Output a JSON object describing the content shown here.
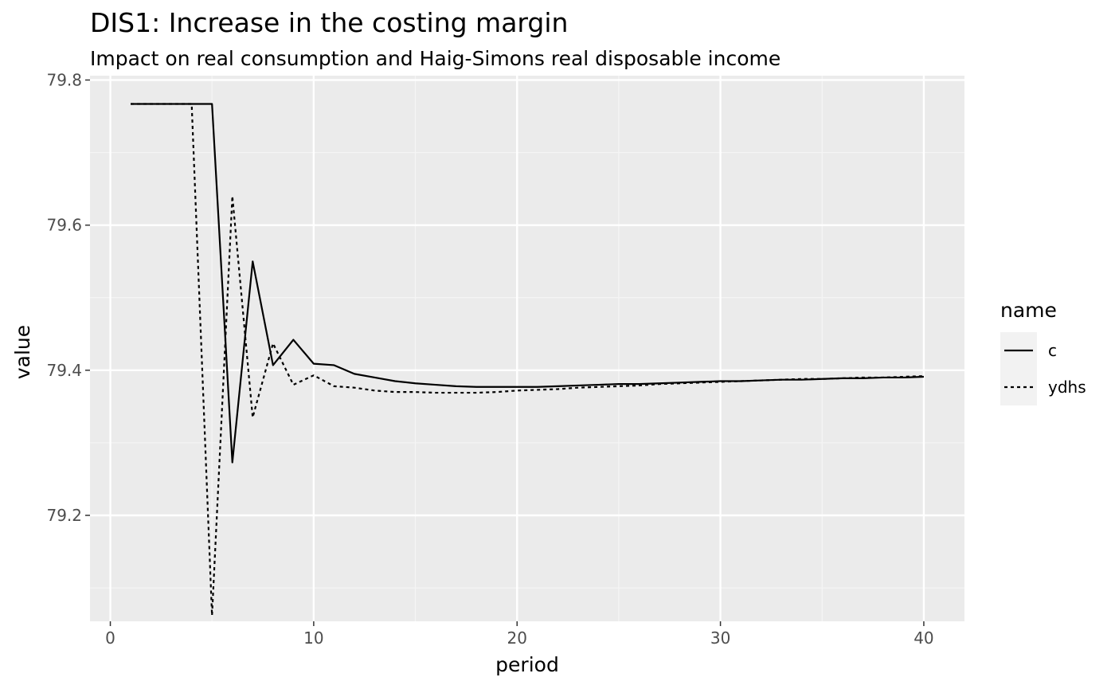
{
  "chart_data": {
    "type": "line",
    "title": "DIS1: Increase in the costing margin",
    "subtitle": "Impact on real consumption and Haig-Simons real disposable income",
    "xlabel": "period",
    "ylabel": "value",
    "xlim": [
      -1,
      42
    ],
    "ylim": [
      79.054,
      79.806
    ],
    "xticks": [
      0,
      10,
      20,
      30,
      40
    ],
    "xtick_labels": [
      "0",
      "10",
      "20",
      "30",
      "40"
    ],
    "yticks": [
      79.2,
      79.4,
      79.6,
      79.8
    ],
    "ytick_labels": [
      "79.2",
      "79.4",
      "79.6",
      "79.8"
    ],
    "grid": true,
    "legend_title": "name",
    "legend_position": "right",
    "x": [
      1,
      2,
      3,
      4,
      5,
      6,
      7,
      8,
      9,
      10,
      11,
      12,
      13,
      14,
      15,
      16,
      17,
      18,
      19,
      20,
      21,
      22,
      23,
      24,
      25,
      26,
      27,
      28,
      29,
      30,
      31,
      32,
      33,
      34,
      35,
      36,
      37,
      38,
      39,
      40
    ],
    "series": [
      {
        "name": "c",
        "linetype": "solid",
        "values": [
          79.767,
          79.767,
          79.767,
          79.767,
          79.767,
          79.273,
          79.55,
          79.407,
          79.442,
          79.409,
          79.407,
          79.395,
          79.39,
          79.385,
          79.382,
          79.38,
          79.378,
          79.377,
          79.377,
          79.377,
          79.377,
          79.378,
          79.379,
          79.38,
          79.381,
          79.381,
          79.382,
          79.383,
          79.384,
          79.385,
          79.385,
          79.386,
          79.387,
          79.387,
          79.388,
          79.389,
          79.389,
          79.39,
          79.39,
          79.391
        ]
      },
      {
        "name": "ydhs",
        "linetype": "dotted",
        "values": [
          79.767,
          79.767,
          79.767,
          79.767,
          79.062,
          79.64,
          79.335,
          79.437,
          79.38,
          79.393,
          79.378,
          79.376,
          79.372,
          79.37,
          79.37,
          79.369,
          79.369,
          79.369,
          79.37,
          79.372,
          79.373,
          79.374,
          79.376,
          79.377,
          79.378,
          79.379,
          79.381,
          79.382,
          79.383,
          79.384,
          79.385,
          79.386,
          79.387,
          79.388,
          79.388,
          79.389,
          79.39,
          79.39,
          79.391,
          79.392
        ]
      }
    ]
  },
  "colors": {
    "panel_bg": "#ebebeb",
    "grid_major": "#ffffff",
    "grid_minor": "#f5f5f5",
    "line": "#000000",
    "axis_text": "#4d4d4d",
    "legend_key_bg": "#f2f2f2"
  }
}
